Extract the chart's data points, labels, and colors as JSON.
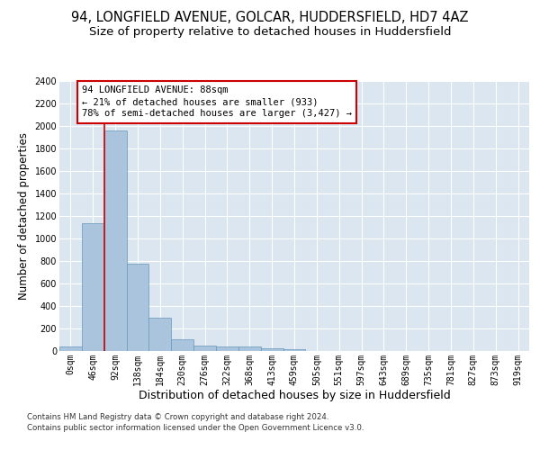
{
  "title_line1": "94, LONGFIELD AVENUE, GOLCAR, HUDDERSFIELD, HD7 4AZ",
  "title_line2": "Size of property relative to detached houses in Huddersfield",
  "xlabel": "Distribution of detached houses by size in Huddersfield",
  "ylabel": "Number of detached properties",
  "bar_labels": [
    "0sqm",
    "46sqm",
    "92sqm",
    "138sqm",
    "184sqm",
    "230sqm",
    "276sqm",
    "322sqm",
    "368sqm",
    "413sqm",
    "459sqm",
    "505sqm",
    "551sqm",
    "597sqm",
    "643sqm",
    "689sqm",
    "735sqm",
    "781sqm",
    "827sqm",
    "873sqm",
    "919sqm"
  ],
  "bar_values": [
    40,
    1140,
    1960,
    775,
    300,
    105,
    50,
    42,
    38,
    22,
    15,
    0,
    0,
    0,
    0,
    0,
    0,
    0,
    0,
    0,
    0
  ],
  "bar_color": "#aac4de",
  "bar_edge_color": "#6699bb",
  "ylim": [
    0,
    2400
  ],
  "yticks": [
    0,
    200,
    400,
    600,
    800,
    1000,
    1200,
    1400,
    1600,
    1800,
    2000,
    2200,
    2400
  ],
  "vline_color": "#cc0000",
  "vline_bar_index": 2,
  "annotation_text": "94 LONGFIELD AVENUE: 88sqm\n← 21% of detached houses are smaller (933)\n78% of semi-detached houses are larger (3,427) →",
  "annotation_box_color": "#ffffff",
  "annotation_box_edge": "#cc0000",
  "plot_bg_color": "#dce6f0",
  "footer_line1": "Contains HM Land Registry data © Crown copyright and database right 2024.",
  "footer_line2": "Contains public sector information licensed under the Open Government Licence v3.0.",
  "title_fontsize": 10.5,
  "subtitle_fontsize": 9.5,
  "tick_label_fontsize": 7,
  "ylabel_fontsize": 8.5,
  "xlabel_fontsize": 9,
  "footer_fontsize": 6.2,
  "annot_fontsize": 7.5
}
